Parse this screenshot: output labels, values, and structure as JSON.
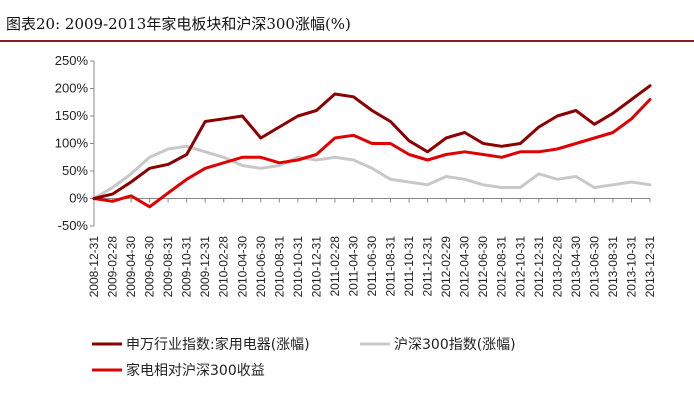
{
  "figure_title": "图表20:  2009-2013年家电板块和沪深300涨幅(%)",
  "colors": {
    "primary": "#8b0000",
    "secondary": "#c8c8c8",
    "relative": "#e00000",
    "rule": "#8b1a1a"
  },
  "chart_data": {
    "type": "line",
    "title": "",
    "xlabel": "",
    "ylabel": "",
    "ylim": [
      -50,
      250
    ],
    "yticks": [
      -50,
      0,
      50,
      100,
      150,
      200,
      250
    ],
    "ytick_labels": [
      "-50%",
      "0%",
      "50%",
      "100%",
      "150%",
      "200%",
      "250%"
    ],
    "grid": false,
    "legend": "bottom",
    "x_ticks": [
      "2008-12-31",
      "2009-02-28",
      "2009-04-30",
      "2009-06-30",
      "2009-08-31",
      "2009-10-31",
      "2009-12-31",
      "2010-02-28",
      "2010-04-30",
      "2010-06-30",
      "2010-08-31",
      "2010-10-31",
      "2010-12-31",
      "2011-02-28",
      "2011-04-30",
      "2011-06-30",
      "2011-08-31",
      "2011-10-31",
      "2011-12-31",
      "2012-02-29",
      "2012-04-30",
      "2012-06-30",
      "2012-08-31",
      "2012-10-31",
      "2012-12-31",
      "2013-02-28",
      "2013-04-30",
      "2013-06-30",
      "2013-08-31",
      "2013-10-31",
      "2013-12-31"
    ],
    "series": [
      {
        "name": "申万行业指数:家用电器(涨幅)",
        "color": "#8b0000",
        "values": [
          0,
          8,
          30,
          55,
          62,
          80,
          140,
          145,
          150,
          110,
          130,
          150,
          160,
          190,
          185,
          160,
          140,
          105,
          85,
          110,
          120,
          100,
          95,
          100,
          130,
          150,
          160,
          135,
          155,
          180,
          205
        ]
      },
      {
        "name": "沪深300指数(涨幅)",
        "color": "#c8c8c8",
        "values": [
          0,
          20,
          45,
          75,
          90,
          95,
          85,
          75,
          60,
          55,
          60,
          75,
          70,
          75,
          70,
          55,
          35,
          30,
          25,
          40,
          35,
          25,
          20,
          20,
          45,
          35,
          40,
          20,
          25,
          30,
          25
        ]
      },
      {
        "name": "家电相对沪深300收益",
        "color": "#e00000",
        "values": [
          0,
          -5,
          5,
          -15,
          10,
          35,
          55,
          65,
          75,
          75,
          65,
          70,
          80,
          110,
          115,
          100,
          100,
          80,
          70,
          80,
          85,
          80,
          75,
          85,
          85,
          90,
          100,
          110,
          120,
          145,
          180
        ]
      }
    ]
  }
}
